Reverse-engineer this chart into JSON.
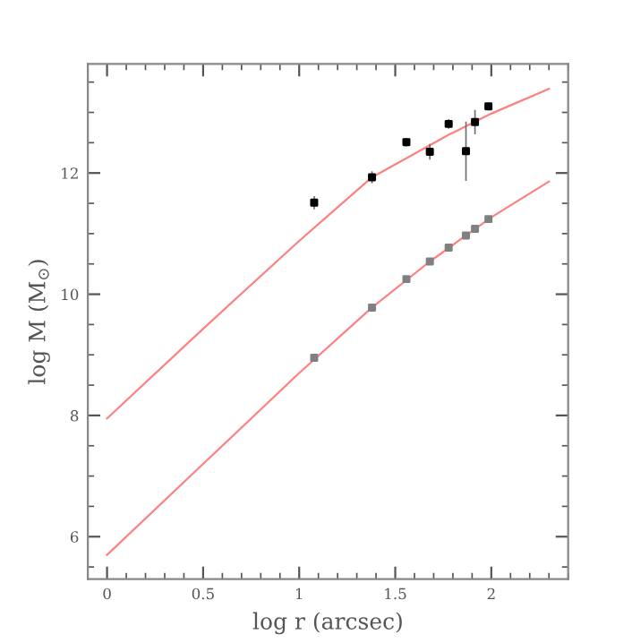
{
  "chart_data": {
    "type": "scatter",
    "xlabel": "log r (arcsec)",
    "ylabel": "log M (M$_{⊙}$)",
    "xlim": [
      -0.1,
      2.4
    ],
    "ylim": [
      5.3,
      13.8
    ],
    "xticks": [
      0,
      0.5,
      1,
      1.5,
      2
    ],
    "yticks": [
      6,
      8,
      10,
      12
    ],
    "grid": false,
    "series": [
      {
        "type": "line",
        "color": "#ff8080",
        "marker": "none",
        "line_style": "solid",
        "x": [
          0,
          0.5,
          1.0,
          1.379,
          1.778,
          2.0,
          2.3
        ],
        "values": [
          7.95,
          9.43,
          10.88,
          11.93,
          12.63,
          12.98,
          13.39
        ]
      },
      {
        "type": "line",
        "color": "#ff8080",
        "marker": "none",
        "line_style": "solid",
        "x": [
          0,
          0.5,
          1.0,
          1.379,
          1.68,
          2.0,
          2.3
        ],
        "values": [
          5.7,
          7.2,
          8.7,
          9.78,
          10.54,
          11.27,
          11.86
        ]
      },
      {
        "color": "#000000",
        "marker": "square",
        "x": [
          1.078,
          1.379,
          1.558,
          1.68,
          1.778,
          1.868,
          1.915,
          1.985
        ],
        "values": [
          11.51,
          11.93,
          12.51,
          12.35,
          12.81,
          12.36,
          12.84,
          13.1
        ],
        "errors": [
          0.11,
          0.1,
          0.07,
          0.13,
          0.08,
          0.49,
          0.2,
          0.05
        ]
      },
      {
        "color": "#808080",
        "marker": "square",
        "x": [
          1.078,
          1.379,
          1.558,
          1.68,
          1.778,
          1.868,
          1.915,
          1.985
        ],
        "values": [
          8.95,
          9.78,
          10.25,
          10.54,
          10.77,
          10.97,
          11.08,
          11.24
        ]
      }
    ]
  }
}
